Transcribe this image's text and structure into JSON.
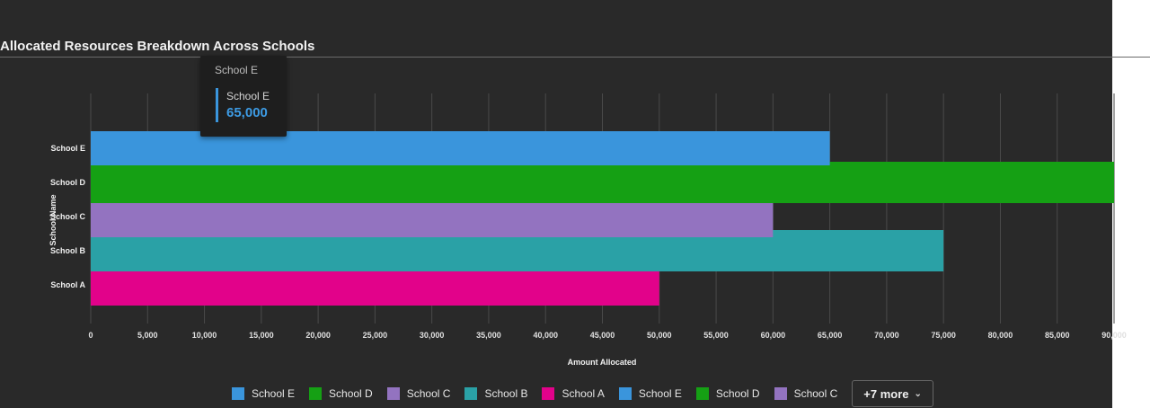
{
  "title": "Allocated Resources Breakdown Across Schools",
  "chart_data": {
    "type": "bar",
    "orientation": "horizontal",
    "categories": [
      "School A",
      "School B",
      "School C",
      "School D",
      "School E"
    ],
    "values": [
      50000,
      75000,
      60000,
      90000,
      65000
    ],
    "colors": [
      "#e2028a",
      "#2aa1a6",
      "#9373c0",
      "#15a014",
      "#3a95dc"
    ],
    "xlabel": "Amount Allocated",
    "ylabel": "School Name",
    "xlim": [
      0,
      90000
    ],
    "x_ticks": [
      "0",
      "5,000",
      "10,000",
      "15,000",
      "20,000",
      "25,000",
      "30,000",
      "35,000",
      "40,000",
      "45,000",
      "50,000",
      "55,000",
      "60,000",
      "65,000",
      "70,000",
      "75,000",
      "80,000",
      "85,000",
      "90,000"
    ],
    "grid": true,
    "legend_position": "bottom"
  },
  "tooltip": {
    "title": "School E",
    "series_name": "School E",
    "value": "65,000",
    "color": "#3a95dc"
  },
  "legend": {
    "items": [
      {
        "label": "School E",
        "color": "#3a95dc"
      },
      {
        "label": "School D",
        "color": "#15a014"
      },
      {
        "label": "School C",
        "color": "#9373c0"
      },
      {
        "label": "School B",
        "color": "#2aa1a6"
      },
      {
        "label": "School A",
        "color": "#e2028a"
      },
      {
        "label": "School E",
        "color": "#3a95dc"
      },
      {
        "label": "School D",
        "color": "#15a014"
      },
      {
        "label": "School C",
        "color": "#9373c0"
      }
    ],
    "more_label": "+7 more"
  }
}
